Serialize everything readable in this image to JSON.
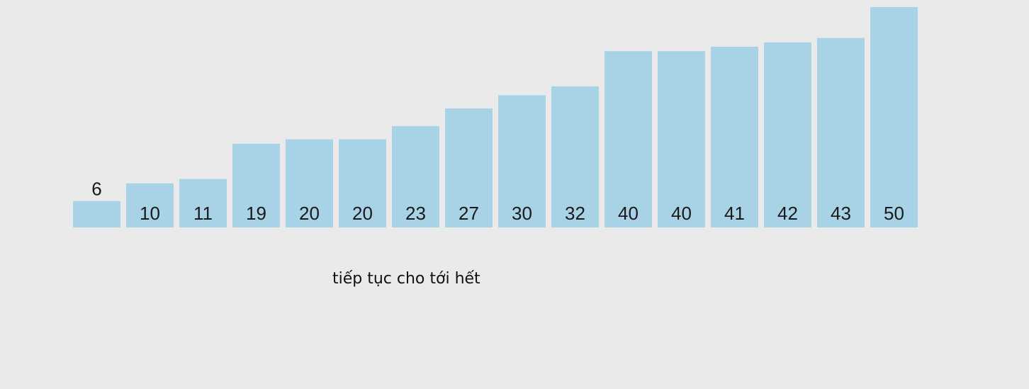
{
  "chart_data": {
    "type": "bar",
    "title": "",
    "xlabel": "",
    "ylabel": "",
    "values": [
      6,
      10,
      11,
      19,
      20,
      20,
      23,
      27,
      30,
      32,
      40,
      40,
      41,
      42,
      43,
      50
    ],
    "labels": [
      "6",
      "10",
      "11",
      "19",
      "20",
      "20",
      "23",
      "27",
      "30",
      "32",
      "40",
      "40",
      "41",
      "42",
      "43",
      "50"
    ],
    "ylim": [
      0,
      50
    ],
    "grid": false,
    "legend": "none",
    "bar_color": "#a8d3e6",
    "label_color": "#1a1a1a"
  },
  "caption": "tiếp tục cho tới hết"
}
